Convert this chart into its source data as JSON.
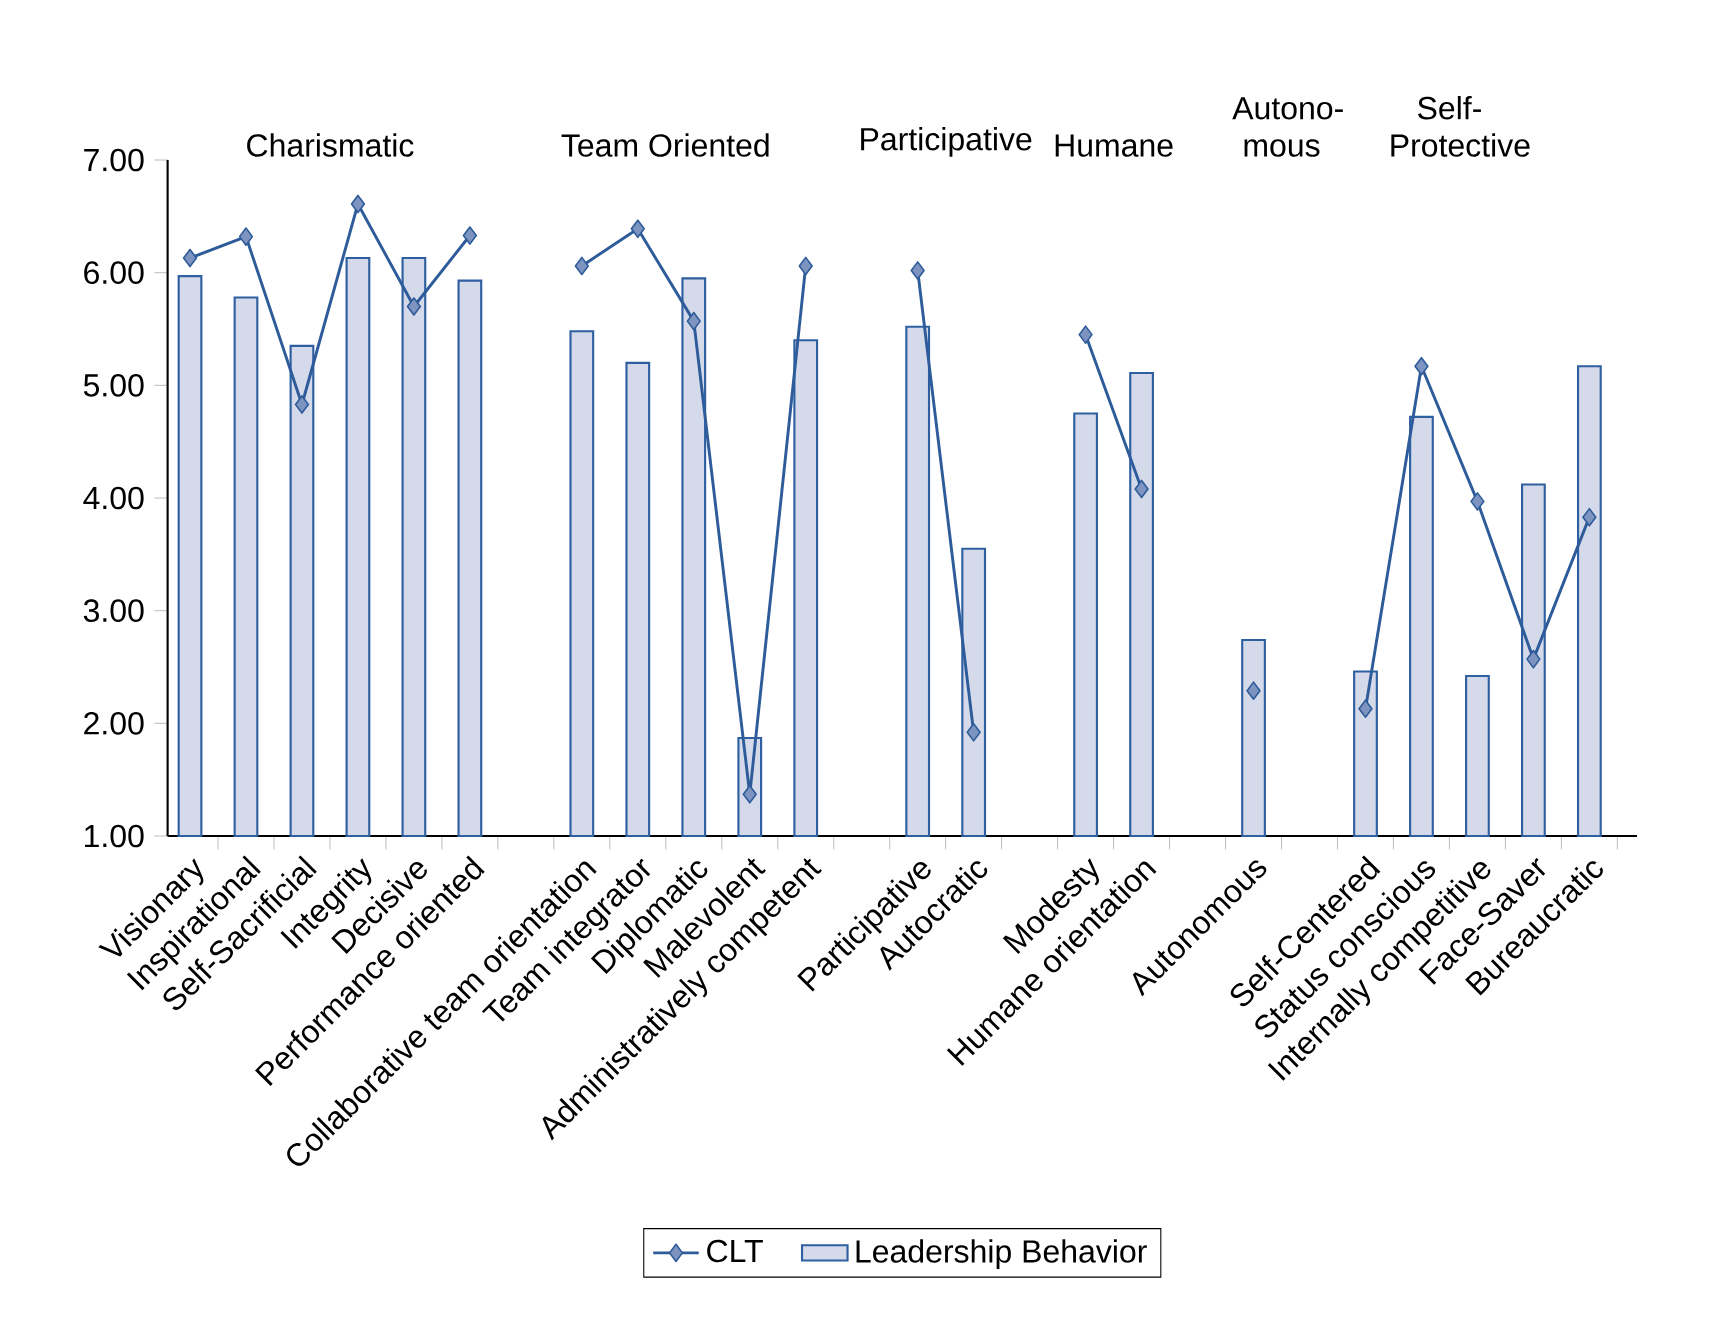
{
  "chart_data": {
    "type": "bar",
    "categories": [
      "Visionary",
      "Inspirational",
      "Self-Sacrificial",
      "Integrity",
      "Decisive",
      "Performance oriented",
      null,
      "Collaborative team orientation",
      "Team integrator",
      "Diplomatic",
      "Malevolent",
      "Administratively competent",
      null,
      "Participative",
      "Autocratic",
      null,
      "Modesty",
      "Humane orientation",
      null,
      "Autonomous",
      null,
      "Self-Centered",
      "Status conscious",
      "Internally competitive",
      "Face-Saver",
      "Bureaucratic"
    ],
    "series": [
      {
        "name": "CLT",
        "type": "line",
        "color": "#2e5c9a",
        "marker": "diamond",
        "values": [
          6.13,
          6.32,
          4.83,
          6.61,
          5.7,
          6.33,
          null,
          6.06,
          6.39,
          5.57,
          1.37,
          6.06,
          null,
          6.02,
          1.92,
          null,
          5.45,
          4.08,
          null,
          2.29,
          null,
          2.13,
          5.17,
          3.97,
          2.57,
          3.83
        ]
      },
      {
        "name": "Leadership Behavior",
        "color": "#d5daea",
        "values": [
          5.97,
          5.78,
          5.35,
          6.13,
          6.13,
          5.93,
          null,
          5.48,
          5.2,
          5.95,
          1.87,
          5.4,
          null,
          5.52,
          3.55,
          null,
          4.75,
          5.11,
          null,
          2.74,
          null,
          2.46,
          4.72,
          2.42,
          4.12,
          5.17
        ]
      }
    ],
    "ylim": [
      1,
      7
    ],
    "yticks": [
      {
        "value": 1,
        "label": "1.00"
      },
      {
        "value": 2,
        "label": "2.00"
      },
      {
        "value": 3,
        "label": "3.00"
      },
      {
        "value": 4,
        "label": "4.00"
      },
      {
        "value": 5,
        "label": "5.00"
      },
      {
        "value": 6,
        "label": "6.00"
      },
      {
        "value": 7,
        "label": "7.00"
      }
    ],
    "annotations": [
      "Charismatic",
      "Team Oriented",
      "Participative",
      "Humane",
      "Autono-mous",
      "Self-Protective"
    ],
    "grid": false,
    "legend": "bottom"
  }
}
